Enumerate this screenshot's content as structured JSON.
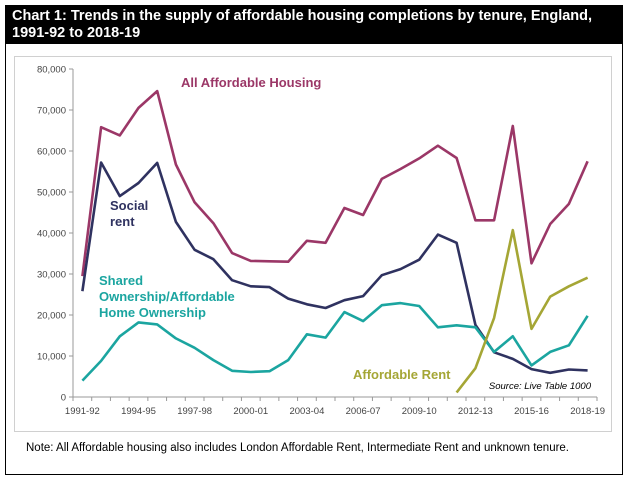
{
  "title": "Chart 1: Trends in the supply of affordable housing completions by tenure, England, 1991-92 to 2018-19",
  "note": "Note: All Affordable housing also includes London Affordable Rent, Intermediate Rent and unknown tenure.",
  "chart_data": {
    "type": "line",
    "title": "Chart 1: Trends in the supply of affordable housing completions by tenure, England, 1991-92 to 2018-19",
    "xlabel": "",
    "ylabel": "",
    "ylim": [
      0,
      80000
    ],
    "yticks": [
      0,
      10000,
      20000,
      30000,
      40000,
      50000,
      60000,
      70000,
      80000
    ],
    "ytick_labels": [
      "0",
      "10,000",
      "20,000",
      "30,000",
      "40,000",
      "50,000",
      "60,000",
      "70,000",
      "80,000"
    ],
    "grid": false,
    "categories": [
      "1991-92",
      "1992-93",
      "1993-94",
      "1994-95",
      "1995-96",
      "1996-97",
      "1997-98",
      "1998-99",
      "1999-00",
      "2000-01",
      "2001-02",
      "2002-03",
      "2003-04",
      "2004-05",
      "2005-06",
      "2006-07",
      "2007-08",
      "2008-09",
      "2009-10",
      "2010-11",
      "2011-12",
      "2012-13",
      "2013-14",
      "2014-15",
      "2015-16",
      "2016-17",
      "2017-18",
      "2018-19"
    ],
    "xtick_labels": [
      "1991-92",
      "1994-95",
      "1997-98",
      "2000-01",
      "2003-04",
      "2006-07",
      "2009-10",
      "2012-13",
      "2015-16",
      "2018-19"
    ],
    "xtick_indices": [
      0,
      3,
      6,
      9,
      12,
      15,
      18,
      21,
      24,
      27
    ],
    "source": "Source: Live Table 1000",
    "series": [
      {
        "name": "All Affordable Housing",
        "color": "#9B3767",
        "label_lines": [
          "All Affordable Housing"
        ],
        "values": [
          29500,
          65800,
          63800,
          70500,
          74600,
          56700,
          47500,
          42400,
          35100,
          33200,
          33100,
          33000,
          38100,
          37600,
          46100,
          44400,
          53200,
          55600,
          58200,
          61300,
          58300,
          43100,
          43100,
          66100,
          32600,
          42200,
          47100,
          57500
        ]
      },
      {
        "name": "Social rent",
        "color": "#2F3260",
        "label_lines": [
          "Social",
          "rent"
        ],
        "values": [
          25800,
          57200,
          49000,
          52200,
          57100,
          42700,
          35900,
          33600,
          28500,
          27000,
          26800,
          24000,
          22600,
          21700,
          23600,
          24600,
          29700,
          31200,
          33500,
          39600,
          37600,
          17600,
          10900,
          9300,
          6800,
          5900,
          6700,
          6500
        ]
      },
      {
        "name": "Shared Ownership/Affordable Home Ownership",
        "color": "#1BA5A0",
        "label_lines": [
          "Shared",
          "Ownership/Affordable",
          "Home Ownership"
        ],
        "values": [
          4000,
          8800,
          14800,
          18200,
          17700,
          14300,
          12000,
          9000,
          6400,
          6100,
          6300,
          9000,
          15300,
          14500,
          20700,
          18500,
          22400,
          22900,
          22200,
          17000,
          17500,
          17000,
          11000,
          14800,
          7700,
          11000,
          12600,
          19800
        ]
      },
      {
        "name": "Affordable Rent",
        "color": "#A5A635",
        "label_lines": [
          "Affordable Rent"
        ],
        "values": [
          null,
          null,
          null,
          null,
          null,
          null,
          null,
          null,
          null,
          null,
          null,
          null,
          null,
          null,
          null,
          null,
          null,
          null,
          null,
          null,
          1100,
          7000,
          19300,
          40700,
          16600,
          24500,
          27000,
          29100
        ]
      }
    ]
  }
}
